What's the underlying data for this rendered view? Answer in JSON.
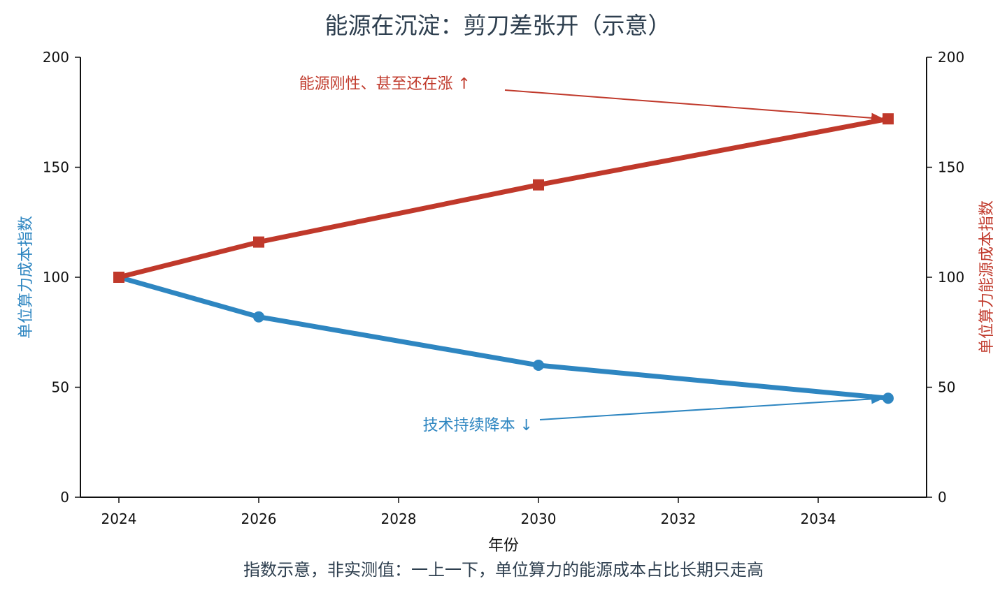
{
  "chart_data": {
    "type": "line",
    "title": "能源在沉淀：剪刀差张开（示意）",
    "xlabel": "年份",
    "ylabel_left": "单位算力成本指数",
    "ylabel_right": "单位算力能源成本指数",
    "caption": "指数示意，非实测值：一上一下，单位算力的能源成本占比长期只走高",
    "x_ticks": [
      2024,
      2026,
      2028,
      2030,
      2032,
      2034
    ],
    "y_ticks": [
      0,
      50,
      100,
      150,
      200
    ],
    "xlim": [
      2023.45,
      2035.55
    ],
    "ylim": [
      0,
      200
    ],
    "grid": false,
    "series": [
      {
        "axis": "left",
        "color": "#2e86c1",
        "marker": "circle",
        "x": [
          2024,
          2026,
          2030,
          2035
        ],
        "values": [
          100,
          82,
          60,
          45
        ]
      },
      {
        "axis": "right",
        "color": "#c0392b",
        "marker": "square",
        "x": [
          2024,
          2026,
          2030,
          2035
        ],
        "values": [
          100,
          116,
          142,
          172
        ]
      }
    ],
    "annotations": [
      {
        "text": "能源刚性、甚至还在涨 ↑",
        "color": "#c0392b",
        "target_x": 2035,
        "target_y": 172
      },
      {
        "text": "技术持续降本 ↓",
        "color": "#2e86c1",
        "target_x": 2035,
        "target_y": 45
      }
    ]
  }
}
